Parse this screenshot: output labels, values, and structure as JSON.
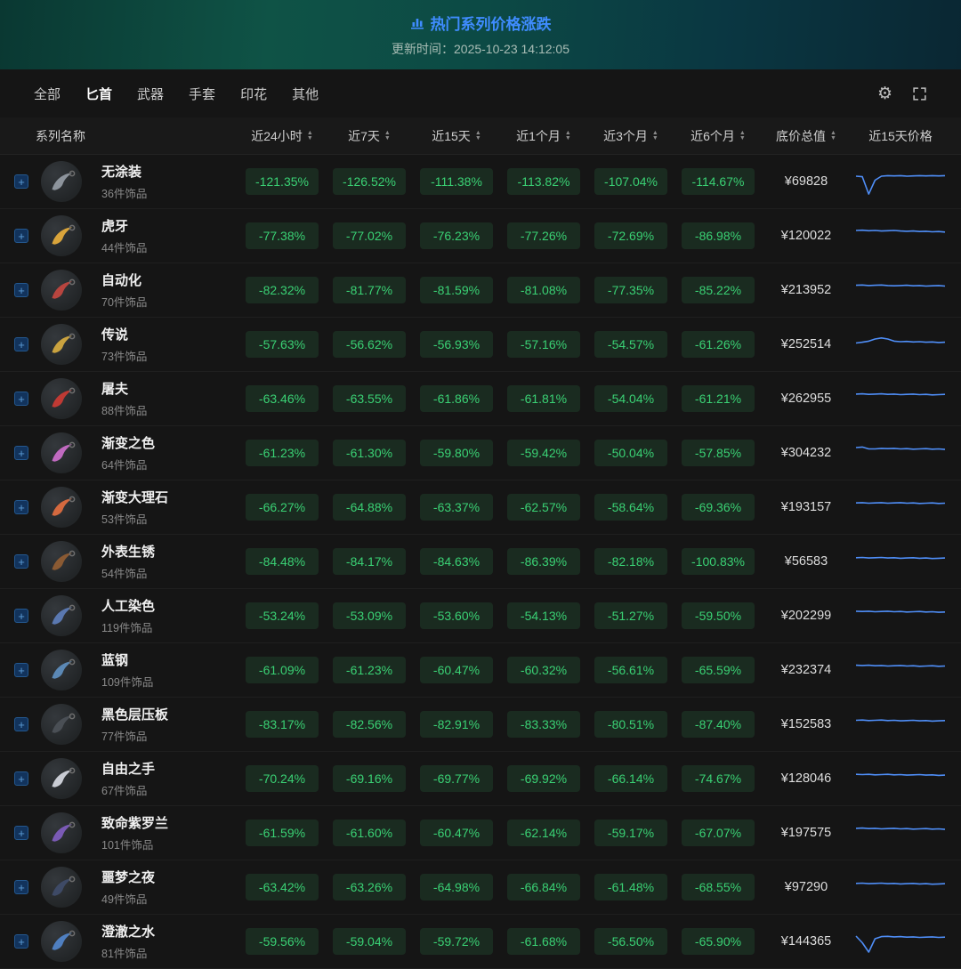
{
  "banner": {
    "title": "热门系列价格涨跌",
    "update_label": "更新时间：2025-10-23 14:12:05"
  },
  "tabs": [
    "全部",
    "匕首",
    "武器",
    "手套",
    "印花",
    "其他"
  ],
  "active_tab_index": 1,
  "icons": {
    "title": "bar-chart-icon",
    "settings": "gear-icon",
    "fullscreen": "fullscreen-icon",
    "sort": "sort-icon",
    "expand_row": "plus-icon",
    "gear_glyph": "⚙",
    "expand_glyph": "+",
    "sort_up_glyph": "▲",
    "sort_down_glyph": "▼"
  },
  "colors": {
    "accent_blue": "#3f8cff",
    "down_green_text": "#3ad174",
    "down_green_bg": "rgba(62,207,118,0.12)",
    "sparkline_blue": "#4f8ef7",
    "banner_teal": "#0f5346"
  },
  "table": {
    "name_header": "系列名称",
    "sortable_headers": [
      "近24小时",
      "近7天",
      "近15天",
      "近1个月",
      "近3个月",
      "近6个月",
      "底价总值"
    ],
    "chart_header": "近15天价格",
    "rows": [
      {
        "name": "无涂装",
        "count": "36件饰品",
        "values": [
          "-121.35%",
          "-126.52%",
          "-111.38%",
          "-113.82%",
          "-107.04%",
          "-114.67%"
        ],
        "price": "¥69828",
        "color": "#8d949c",
        "spark": [
          0.3,
          0.32,
          0.97,
          0.45,
          0.3,
          0.28,
          0.29,
          0.28,
          0.3,
          0.29,
          0.28,
          0.29,
          0.28,
          0.29,
          0.28
        ]
      },
      {
        "name": "虎牙",
        "count": "44件饰品",
        "values": [
          "-77.38%",
          "-77.02%",
          "-76.23%",
          "-77.26%",
          "-72.69%",
          "-86.98%"
        ],
        "price": "¥120022",
        "color": "#d9a43b",
        "spark": [
          0.3,
          0.29,
          0.31,
          0.3,
          0.32,
          0.31,
          0.3,
          0.32,
          0.33,
          0.32,
          0.34,
          0.33,
          0.35,
          0.34,
          0.36
        ]
      },
      {
        "name": "自动化",
        "count": "70件饰品",
        "values": [
          "-82.32%",
          "-81.77%",
          "-81.59%",
          "-81.08%",
          "-77.35%",
          "-85.22%"
        ],
        "price": "¥213952",
        "color": "#b8453f",
        "spark": [
          0.32,
          0.31,
          0.33,
          0.32,
          0.31,
          0.33,
          0.34,
          0.33,
          0.32,
          0.34,
          0.33,
          0.35,
          0.34,
          0.33,
          0.35
        ]
      },
      {
        "name": "传说",
        "count": "73件饰品",
        "values": [
          "-57.63%",
          "-56.62%",
          "-56.93%",
          "-57.16%",
          "-54.57%",
          "-61.26%"
        ],
        "price": "¥252514",
        "color": "#c9a23f",
        "spark": [
          0.45,
          0.42,
          0.38,
          0.3,
          0.26,
          0.3,
          0.38,
          0.4,
          0.39,
          0.41,
          0.4,
          0.42,
          0.41,
          0.43,
          0.42
        ]
      },
      {
        "name": "屠夫",
        "count": "88件饰品",
        "values": [
          "-63.46%",
          "-63.55%",
          "-61.86%",
          "-61.81%",
          "-54.04%",
          "-61.21%"
        ],
        "price": "¥262955",
        "color": "#c03a34",
        "spark": [
          0.33,
          0.32,
          0.34,
          0.33,
          0.32,
          0.34,
          0.33,
          0.35,
          0.34,
          0.33,
          0.35,
          0.34,
          0.36,
          0.35,
          0.34
        ]
      },
      {
        "name": "渐变之色",
        "count": "64件饰品",
        "values": [
          "-61.23%",
          "-61.30%",
          "-59.80%",
          "-59.42%",
          "-50.04%",
          "-57.85%"
        ],
        "price": "¥304232",
        "color": "#c06ac0",
        "spark": [
          0.3,
          0.28,
          0.35,
          0.35,
          0.33,
          0.34,
          0.33,
          0.35,
          0.34,
          0.36,
          0.35,
          0.34,
          0.36,
          0.35,
          0.37
        ]
      },
      {
        "name": "渐变大理石",
        "count": "53件饰品",
        "values": [
          "-66.27%",
          "-64.88%",
          "-63.37%",
          "-62.57%",
          "-58.64%",
          "-69.36%"
        ],
        "price": "¥193157",
        "color": "#d4693f",
        "spark": [
          0.34,
          0.33,
          0.35,
          0.34,
          0.33,
          0.35,
          0.34,
          0.33,
          0.35,
          0.34,
          0.36,
          0.35,
          0.34,
          0.36,
          0.35
        ]
      },
      {
        "name": "外表生锈",
        "count": "54件饰品",
        "values": [
          "-84.48%",
          "-84.17%",
          "-84.63%",
          "-86.39%",
          "-82.18%",
          "-100.83%"
        ],
        "price": "¥56583",
        "color": "#8a5a33",
        "spark": [
          0.36,
          0.35,
          0.37,
          0.36,
          0.35,
          0.37,
          0.36,
          0.38,
          0.37,
          0.36,
          0.38,
          0.37,
          0.39,
          0.38,
          0.37
        ]
      },
      {
        "name": "人工染色",
        "count": "119件饰品",
        "values": [
          "-53.24%",
          "-53.09%",
          "-53.60%",
          "-54.13%",
          "-51.27%",
          "-59.50%"
        ],
        "price": "¥202299",
        "color": "#5a78b0",
        "spark": [
          0.33,
          0.34,
          0.33,
          0.35,
          0.34,
          0.33,
          0.35,
          0.34,
          0.36,
          0.35,
          0.34,
          0.36,
          0.35,
          0.37,
          0.36
        ]
      },
      {
        "name": "蓝钢",
        "count": "109件饰品",
        "values": [
          "-61.09%",
          "-61.23%",
          "-60.47%",
          "-60.32%",
          "-56.61%",
          "-65.59%"
        ],
        "price": "¥232374",
        "color": "#5b88b5",
        "spark": [
          0.32,
          0.33,
          0.32,
          0.34,
          0.33,
          0.35,
          0.34,
          0.33,
          0.35,
          0.34,
          0.36,
          0.35,
          0.34,
          0.36,
          0.35
        ]
      },
      {
        "name": "黑色层压板",
        "count": "77件饰品",
        "values": [
          "-83.17%",
          "-82.56%",
          "-82.91%",
          "-83.33%",
          "-80.51%",
          "-87.40%"
        ],
        "price": "¥152583",
        "color": "#4a4f55",
        "spark": [
          0.35,
          0.34,
          0.36,
          0.35,
          0.34,
          0.36,
          0.35,
          0.37,
          0.36,
          0.35,
          0.37,
          0.36,
          0.38,
          0.37,
          0.36
        ]
      },
      {
        "name": "自由之手",
        "count": "67件饰品",
        "values": [
          "-70.24%",
          "-69.16%",
          "-69.77%",
          "-69.92%",
          "-66.14%",
          "-74.67%"
        ],
        "price": "¥128046",
        "color": "#c9ccd4",
        "spark": [
          0.34,
          0.35,
          0.34,
          0.36,
          0.35,
          0.34,
          0.36,
          0.35,
          0.37,
          0.36,
          0.35,
          0.37,
          0.36,
          0.38,
          0.37
        ]
      },
      {
        "name": "致命紫罗兰",
        "count": "101件饰品",
        "values": [
          "-61.59%",
          "-61.60%",
          "-60.47%",
          "-62.14%",
          "-59.17%",
          "-67.07%"
        ],
        "price": "¥197575",
        "color": "#7a5ab5",
        "spark": [
          0.33,
          0.32,
          0.34,
          0.33,
          0.35,
          0.34,
          0.33,
          0.35,
          0.34,
          0.36,
          0.35,
          0.34,
          0.36,
          0.35,
          0.37
        ]
      },
      {
        "name": "噩梦之夜",
        "count": "49件饰品",
        "values": [
          "-63.42%",
          "-63.26%",
          "-64.98%",
          "-66.84%",
          "-61.48%",
          "-68.55%"
        ],
        "price": "¥97290",
        "color": "#3e4a66",
        "spark": [
          0.36,
          0.35,
          0.37,
          0.36,
          0.35,
          0.37,
          0.36,
          0.38,
          0.37,
          0.36,
          0.38,
          0.37,
          0.39,
          0.38,
          0.37
        ]
      },
      {
        "name": "澄澈之水",
        "count": "81件饰品",
        "values": [
          "-59.56%",
          "-59.04%",
          "-59.72%",
          "-61.68%",
          "-56.50%",
          "-65.90%"
        ],
        "price": "¥144365",
        "color": "#4f7fc0",
        "spark": [
          0.3,
          0.55,
          0.9,
          0.4,
          0.32,
          0.31,
          0.33,
          0.32,
          0.34,
          0.33,
          0.35,
          0.34,
          0.33,
          0.35,
          0.34
        ]
      }
    ]
  }
}
